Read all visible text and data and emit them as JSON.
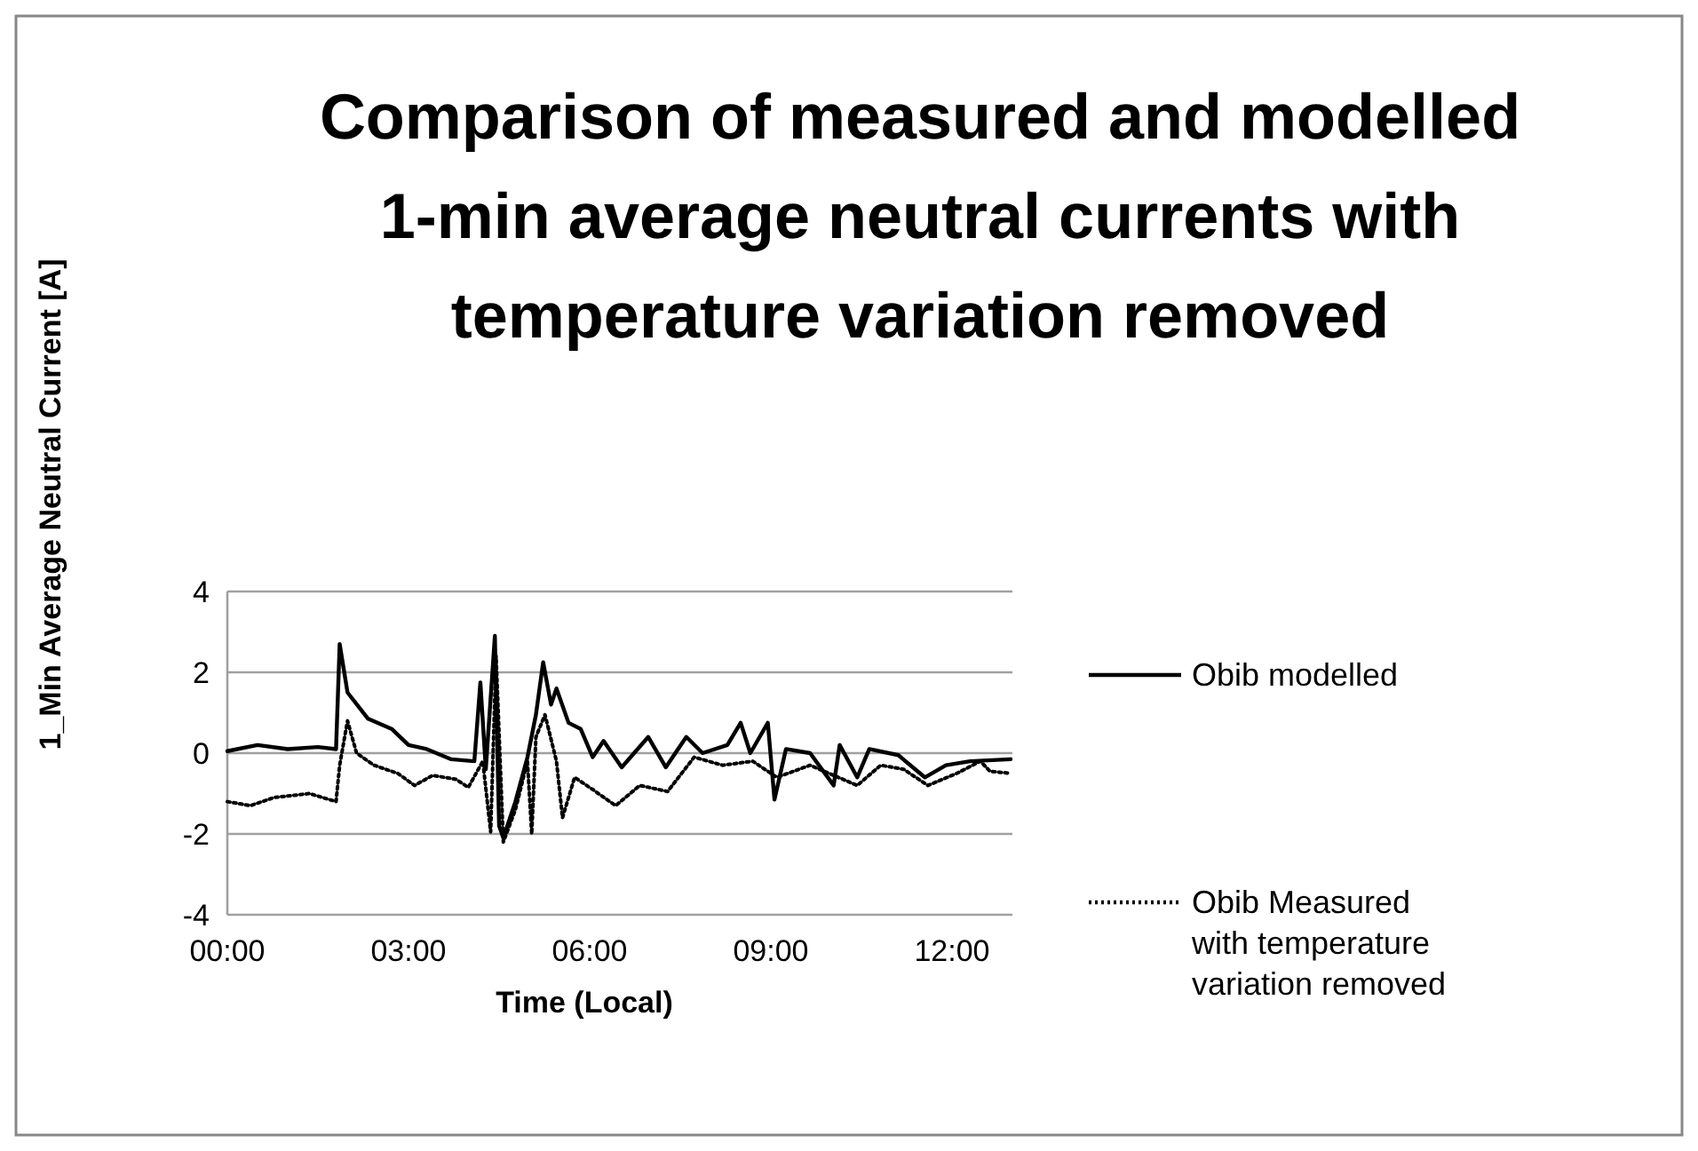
{
  "chart_data": {
    "type": "line",
    "title": "Comparison of measured and modelled 1-min average neutral currents with temperature variation removed",
    "xlabel": "Time (Local)",
    "ylabel": "1_Min Average Neutral Current  [A]",
    "xlim": [
      0,
      13
    ],
    "xticks": [
      {
        "value": 0,
        "label": "00:00"
      },
      {
        "value": 3,
        "label": "03:00"
      },
      {
        "value": 6,
        "label": "06:00"
      },
      {
        "value": 9,
        "label": "09:00"
      },
      {
        "value": 12,
        "label": "12:00"
      }
    ],
    "ylim": [
      -4,
      4
    ],
    "yticks": [
      -4,
      -2,
      0,
      2,
      4
    ],
    "grid": "y",
    "legend": "right",
    "marker": "none",
    "series": [
      {
        "name": "Obib modelled",
        "color": "#000000",
        "line_style": "solid",
        "x": [
          0,
          0.5,
          1,
          1.5,
          1.8,
          1.86,
          1.99,
          2.33,
          2.72,
          3.0,
          3.3,
          3.7,
          4.09,
          4.19,
          4.28,
          4.43,
          4.5,
          4.57,
          4.77,
          4.97,
          5.11,
          5.23,
          5.36,
          5.45,
          5.65,
          5.85,
          6.05,
          6.23,
          6.53,
          6.97,
          7.26,
          7.6,
          7.87,
          8.28,
          8.5,
          8.66,
          8.95,
          9.06,
          9.25,
          9.65,
          10.04,
          10.14,
          10.43,
          10.63,
          11.11,
          11.55,
          11.9,
          12.3,
          12.97
        ],
        "values": [
          0.05,
          0.2,
          0.1,
          0.15,
          0.1,
          2.7,
          1.5,
          0.85,
          0.6,
          0.2,
          0.1,
          -0.15,
          -0.2,
          1.75,
          -0.4,
          2.9,
          -1.8,
          -2.1,
          -1.2,
          -0.1,
          0.95,
          2.25,
          1.2,
          1.6,
          0.75,
          0.6,
          -0.1,
          0.3,
          -0.35,
          0.4,
          -0.35,
          0.4,
          0,
          0.2,
          0.75,
          0,
          0.75,
          -1.15,
          0.1,
          0,
          -0.8,
          0.2,
          -0.6,
          0.1,
          -0.05,
          -0.6,
          -0.3,
          -0.2,
          -0.15
        ]
      },
      {
        "name": "Obib Measured with temperature variation removed",
        "color": "#000000",
        "line_style": "dotted",
        "x": [
          0,
          0.38,
          0.77,
          1.36,
          1.8,
          1.86,
          1.99,
          2.14,
          2.43,
          2.82,
          3.1,
          3.4,
          3.79,
          3.99,
          4.23,
          4.36,
          4.45,
          4.57,
          4.77,
          4.97,
          5.04,
          5.11,
          5.26,
          5.45,
          5.55,
          5.75,
          6.05,
          6.43,
          6.83,
          7.29,
          7.73,
          8.2,
          8.7,
          9.1,
          9.65,
          10.43,
          10.82,
          11.2,
          11.6,
          12.08,
          12.47,
          12.63,
          12.97
        ],
        "values": [
          -1.2,
          -1.3,
          -1.1,
          -1.0,
          -1.2,
          -0.3,
          0.8,
          0,
          -0.3,
          -0.5,
          -0.8,
          -0.55,
          -0.65,
          -0.85,
          -0.2,
          -1.95,
          2.4,
          -2.2,
          -1.4,
          -0.2,
          -2.0,
          0.4,
          0.95,
          -0.2,
          -1.6,
          -0.6,
          -0.9,
          -1.3,
          -0.8,
          -0.95,
          -0.1,
          -0.3,
          -0.2,
          -0.6,
          -0.3,
          -0.8,
          -0.3,
          -0.4,
          -0.8,
          -0.5,
          -0.2,
          -0.45,
          -0.5
        ]
      }
    ]
  }
}
